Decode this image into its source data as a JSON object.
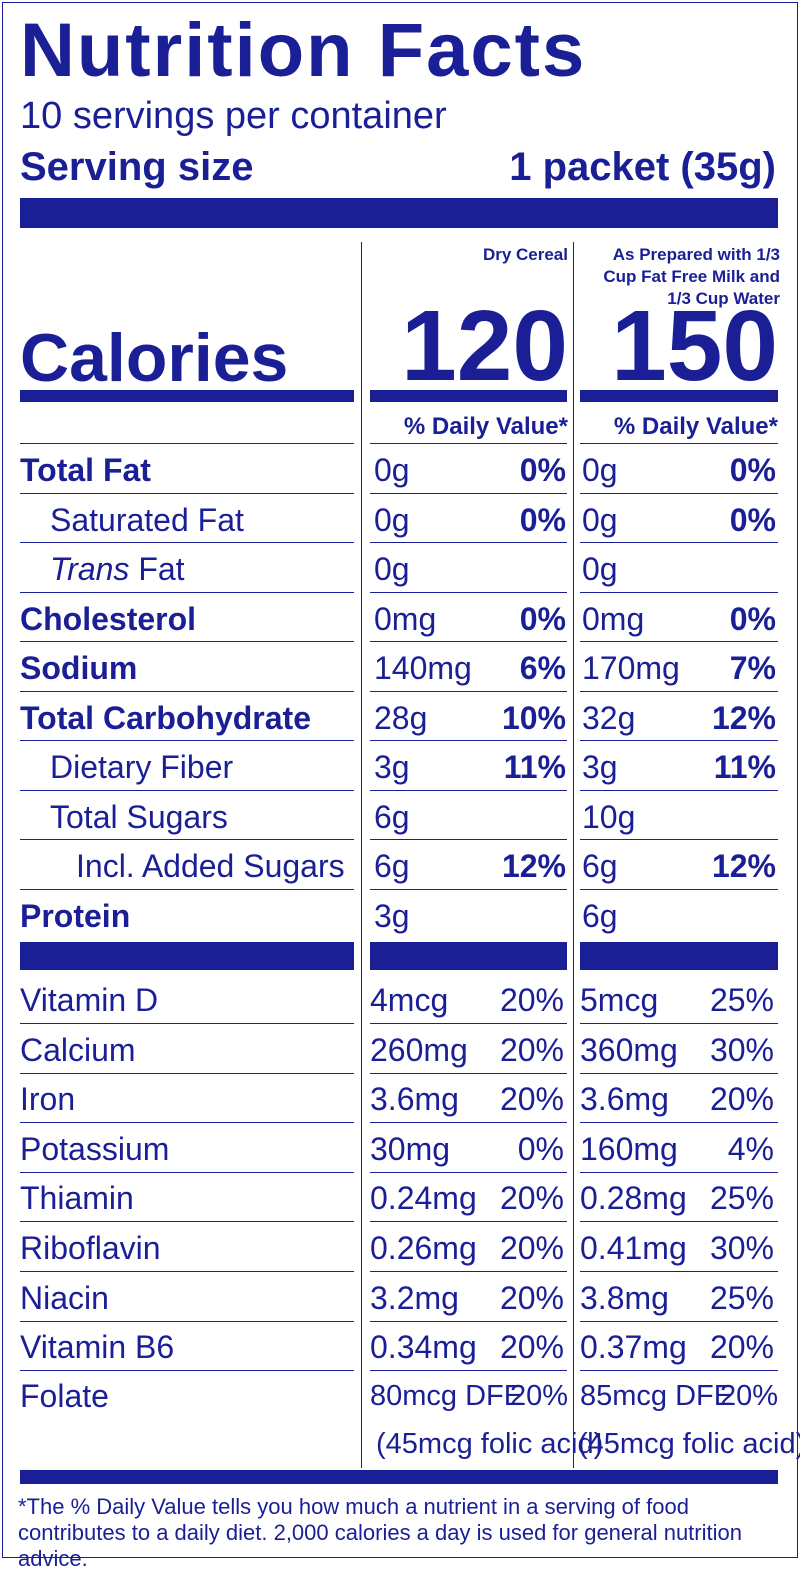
{
  "title": "Nutrition Facts",
  "servings_per_container": "10 servings per container",
  "serving_size_label": "Serving size",
  "serving_size_value": "1 packet (35g)",
  "columns": [
    {
      "header": "Dry Cereal",
      "calories": "120"
    },
    {
      "header": "As Prepared with 1/3 Cup Fat Free Milk and 1/3 Cup Water",
      "calories": "150"
    }
  ],
  "calories_label": "Calories",
  "daily_value_header": "% Daily Value*",
  "nutrients": [
    {
      "name": "Total Fat",
      "style": "bold",
      "indent": 0,
      "dry_amount": "0g",
      "dry_dv": "0%",
      "prep_amount": "0g",
      "prep_dv": "0%"
    },
    {
      "name": "Saturated Fat",
      "style": "normal",
      "indent": 1,
      "dry_amount": "0g",
      "dry_dv": "0%",
      "prep_amount": "0g",
      "prep_dv": "0%"
    },
    {
      "name_italic": "Trans",
      "name": " Fat",
      "style": "normal",
      "indent": 1,
      "dry_amount": "0g",
      "dry_dv": "",
      "prep_amount": "0g",
      "prep_dv": ""
    },
    {
      "name": "Cholesterol",
      "style": "bold",
      "indent": 0,
      "dry_amount": "0mg",
      "dry_dv": "0%",
      "prep_amount": "0mg",
      "prep_dv": "0%"
    },
    {
      "name": "Sodium",
      "style": "bold",
      "indent": 0,
      "dry_amount": "140mg",
      "dry_dv": "6%",
      "prep_amount": "170mg",
      "prep_dv": "7%"
    },
    {
      "name": "Total Carbohydrate",
      "style": "bold",
      "indent": 0,
      "dry_amount": "28g",
      "dry_dv": "10%",
      "prep_amount": "32g",
      "prep_dv": "12%"
    },
    {
      "name": "Dietary Fiber",
      "style": "normal",
      "indent": 1,
      "dry_amount": "3g",
      "dry_dv": "11%",
      "prep_amount": "3g",
      "prep_dv": "11%"
    },
    {
      "name": "Total Sugars",
      "style": "normal",
      "indent": 1,
      "dry_amount": "6g",
      "dry_dv": "",
      "prep_amount": "10g",
      "prep_dv": ""
    },
    {
      "name": "Incl. Added Sugars",
      "style": "normal",
      "indent": 2,
      "dry_amount": "6g",
      "dry_dv": "12%",
      "prep_amount": "6g",
      "prep_dv": "12%"
    },
    {
      "name": "Protein",
      "style": "bold",
      "indent": 0,
      "dry_amount": "3g",
      "dry_dv": "",
      "prep_amount": "6g",
      "prep_dv": ""
    }
  ],
  "vitamins": [
    {
      "name": "Vitamin D",
      "dry_amount": "4mcg",
      "dry_dv": "20%",
      "prep_amount": "5mcg",
      "prep_dv": "25%"
    },
    {
      "name": "Calcium",
      "dry_amount": "260mg",
      "dry_dv": "20%",
      "prep_amount": "360mg",
      "prep_dv": "30%"
    },
    {
      "name": "Iron",
      "dry_amount": "3.6mg",
      "dry_dv": "20%",
      "prep_amount": "3.6mg",
      "prep_dv": "20%"
    },
    {
      "name": "Potassium",
      "dry_amount": "30mg",
      "dry_dv": "0%",
      "prep_amount": "160mg",
      "prep_dv": "4%"
    },
    {
      "name": "Thiamin",
      "dry_amount": "0.24mg",
      "dry_dv": "20%",
      "prep_amount": "0.28mg",
      "prep_dv": "25%"
    },
    {
      "name": "Riboflavin",
      "dry_amount": "0.26mg",
      "dry_dv": "20%",
      "prep_amount": "0.41mg",
      "prep_dv": "30%"
    },
    {
      "name": "Niacin",
      "dry_amount": "3.2mg",
      "dry_dv": "20%",
      "prep_amount": "3.8mg",
      "prep_dv": "25%"
    },
    {
      "name": "Vitamin B6",
      "dry_amount": "0.34mg",
      "dry_dv": "20%",
      "prep_amount": "0.37mg",
      "prep_dv": "20%"
    }
  ],
  "folate": {
    "name": "Folate",
    "dry_amount": "80mcg DFE",
    "dry_dv": "20%",
    "dry_note": "(45mcg folic acid)",
    "prep_amount": "85mcg DFE",
    "prep_dv": "20%",
    "prep_note": "(45mcg folic acid)"
  },
  "footnote": "*The % Daily Value tells you how much a nutrient in a serving of food contributes to a daily diet. 2,000 calories a day is used for general nutrition advice.",
  "colors": {
    "ink": "#1a1f96",
    "background": "#ffffff"
  }
}
